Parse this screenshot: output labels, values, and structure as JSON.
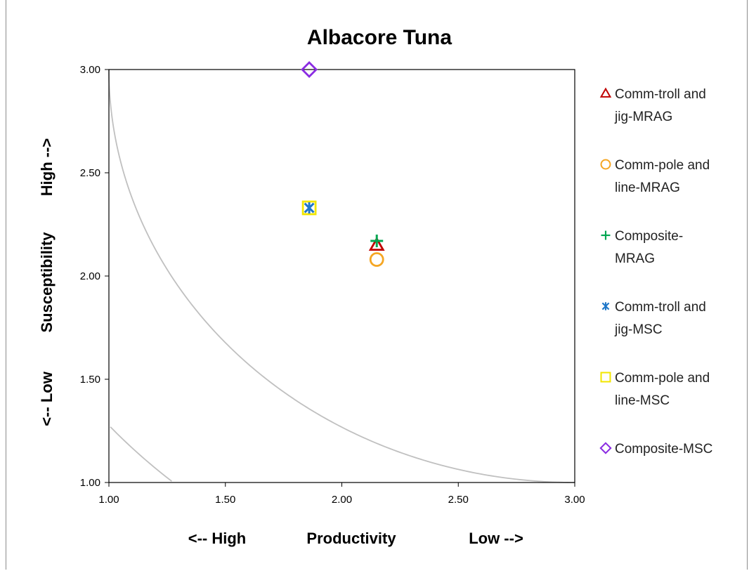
{
  "chart_data": {
    "type": "scatter",
    "title": "Albacore Tuna",
    "xlim": [
      1.0,
      3.0
    ],
    "ylim": [
      1.0,
      3.0
    ],
    "x_ticks": [
      "1.00",
      "1.50",
      "2.00",
      "2.50",
      "3.00"
    ],
    "y_ticks": [
      "1.00",
      "1.50",
      "2.00",
      "2.50",
      "3.00"
    ],
    "x_axis_labels": {
      "left": "<-- High",
      "center": "Productivity",
      "right": "Low  -->"
    },
    "y_axis_labels": {
      "low": "<-- Low",
      "center": "Susceptibility",
      "high": "High  -->"
    },
    "grid": false,
    "legend_position": "right",
    "reference_curves": [
      {
        "radius": 2.0,
        "color": "#c0c0c0"
      },
      {
        "radius": 2.64,
        "color": "#c0c0c0"
      }
    ],
    "series": [
      {
        "name": [
          "Comm-troll and",
          "jig-MRAG"
        ],
        "marker": "triangle",
        "color": "#c00000",
        "points": [
          {
            "x": 2.15,
            "y": 2.15
          }
        ]
      },
      {
        "name": [
          "Comm-pole and",
          "line-MRAG"
        ],
        "marker": "circle",
        "color": "#f5a623",
        "points": [
          {
            "x": 2.15,
            "y": 2.08
          }
        ]
      },
      {
        "name": [
          "Composite-",
          "MRAG"
        ],
        "marker": "plus",
        "color": "#00a651",
        "points": [
          {
            "x": 2.15,
            "y": 2.17
          }
        ]
      },
      {
        "name": [
          "Comm-troll and",
          "jig-MSC"
        ],
        "marker": "asterisk",
        "color": "#1f77c8",
        "points": [
          {
            "x": 1.86,
            "y": 2.33
          }
        ]
      },
      {
        "name": [
          "Comm-pole and",
          "line-MSC"
        ],
        "marker": "square",
        "color": "#f2e600",
        "points": [
          {
            "x": 1.86,
            "y": 2.33
          }
        ]
      },
      {
        "name": [
          "Composite-MSC"
        ],
        "marker": "diamond",
        "color": "#8a2be2",
        "points": [
          {
            "x": 1.86,
            "y": 3.0
          }
        ]
      }
    ]
  }
}
